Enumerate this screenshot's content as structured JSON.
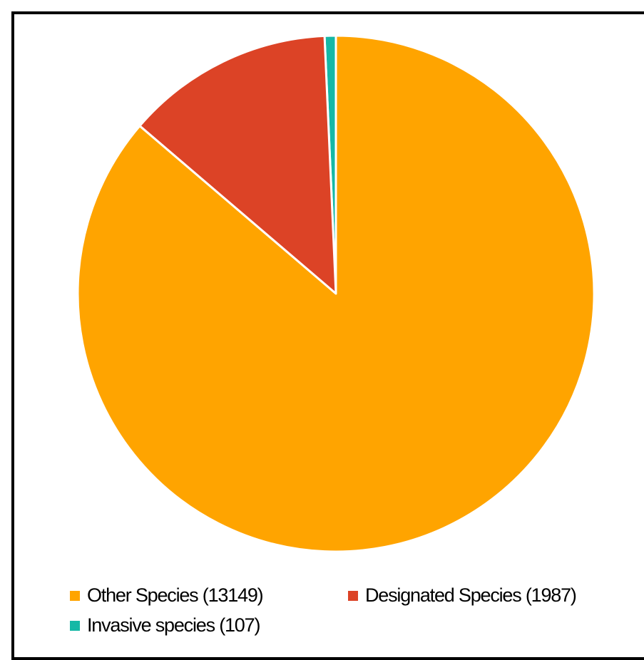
{
  "chart_data": {
    "type": "pie",
    "title": "",
    "slices": [
      {
        "label": "Other Species (13149)",
        "value": 13149,
        "color": "#FFA400"
      },
      {
        "label": "Designated Species (1987)",
        "value": 1987,
        "color": "#DC4326"
      },
      {
        "label": "Invasive species (107)",
        "value": 107,
        "color": "#15B8A6"
      }
    ],
    "start_slice": "Invasive species (107)",
    "direction": "counterclockwise",
    "legend_position": "bottom",
    "slice_border_color": "#ffffff"
  }
}
